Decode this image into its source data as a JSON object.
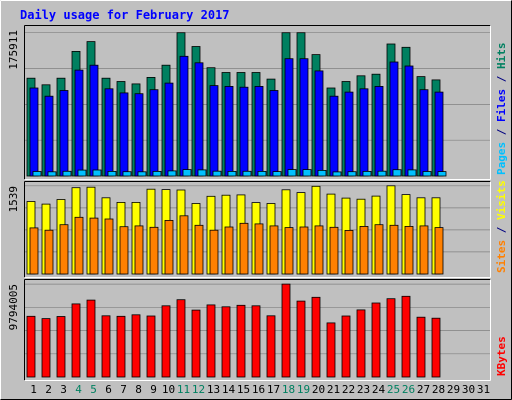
{
  "chart_data": {
    "type": "bar",
    "title": "Daily usage for February 2017",
    "x": [
      "1",
      "2",
      "3",
      "4",
      "5",
      "6",
      "7",
      "8",
      "9",
      "10",
      "11",
      "12",
      "13",
      "14",
      "15",
      "16",
      "17",
      "18",
      "19",
      "20",
      "21",
      "22",
      "23",
      "24",
      "25",
      "26",
      "27",
      "28",
      "29",
      "30",
      "31"
    ],
    "weekend_days": [
      "4",
      "5",
      "11",
      "12",
      "18",
      "19",
      "25",
      "26"
    ],
    "days_with_data": 28,
    "panels": [
      {
        "name": "hits-files-pages",
        "ytick": "175911",
        "ymax": 175911,
        "ylabel_parts": [
          {
            "text": "Pages",
            "color": "#00c0ff"
          },
          {
            "text": " / ",
            "color": "#000080"
          },
          {
            "text": "Files",
            "color": "#0000ff"
          },
          {
            "text": " / ",
            "color": "#000080"
          },
          {
            "text": "Hits",
            "color": "#008060"
          }
        ],
        "series": [
          {
            "name": "Hits",
            "color": "#008060",
            "values": [
              120000,
              112000,
              120000,
              153000,
              165000,
              120000,
              116000,
              113000,
              121000,
              136000,
              175911,
              159000,
              133000,
              127000,
              127000,
              127000,
              119000,
              175900,
              175911,
              149000,
              108000,
              116000,
              123000,
              125000,
              162000,
              158000,
              122000,
              118000
            ]
          },
          {
            "name": "Files",
            "color": "#0000ff",
            "values": [
              108000,
              98000,
              105000,
              130000,
              136000,
              107000,
              102000,
              101000,
              106000,
              114000,
              147000,
              139000,
              111000,
              110000,
              109000,
              110000,
              105000,
              144000,
              144000,
              129000,
              98000,
              103000,
              107000,
              110000,
              140000,
              135000,
              106000,
              103000
            ]
          },
          {
            "name": "Pages",
            "color": "#00c0ff",
            "values": [
              5500,
              5200,
              5800,
              7200,
              7400,
              5600,
              5300,
              5200,
              5700,
              6300,
              7900,
              7500,
              5900,
              5700,
              5800,
              5700,
              5400,
              7800,
              7800,
              6900,
              5000,
              5300,
              5700,
              5900,
              7700,
              7500,
              5500,
              5400
            ]
          }
        ]
      },
      {
        "name": "visits-sites",
        "ytick": "1539",
        "ymax": 1539,
        "ylabel_parts": [
          {
            "text": "Sites",
            "color": "#ff8000"
          },
          {
            "text": " / ",
            "color": "#000080"
          },
          {
            "text": "Visits",
            "color": "#ffff00"
          }
        ],
        "series": [
          {
            "name": "Visits",
            "color": "#ffff00",
            "values": [
              1265,
              1220,
              1300,
              1505,
              1515,
              1330,
              1250,
              1250,
              1480,
              1472,
              1465,
              1230,
              1355,
              1375,
              1380,
              1245,
              1230,
              1470,
              1420,
              1530,
              1395,
              1325,
              1305,
              1360,
              1539,
              1385,
              1330,
              1330
            ]
          },
          {
            "name": "Sites",
            "color": "#ff8000",
            "values": [
              805,
              765,
              860,
              990,
              975,
              960,
              825,
              840,
              815,
              935,
              1015,
              850,
              765,
              820,
              885,
              875,
              840,
              810,
              820,
              840,
              815,
              760,
              830,
              860,
              850,
              830,
              840,
              810
            ]
          }
        ]
      },
      {
        "name": "kbytes",
        "ytick": "9794005",
        "ymax": 9794005,
        "ylabel_parts": [
          {
            "text": "KBytes",
            "color": "#ff0000"
          }
        ],
        "series": [
          {
            "name": "KBytes",
            "color": "#ff0000",
            "values": [
              6400000,
              6150000,
              6370000,
              7700000,
              8100000,
              6450000,
              6400000,
              6550000,
              6430000,
              7500000,
              8150000,
              7050000,
              7600000,
              7400000,
              7550000,
              7500000,
              6450000,
              9794005,
              8000000,
              8400000,
              5700000,
              6430000,
              7070000,
              7800000,
              8250000,
              8500000,
              6300000,
              6200000
            ]
          }
        ]
      }
    ]
  }
}
